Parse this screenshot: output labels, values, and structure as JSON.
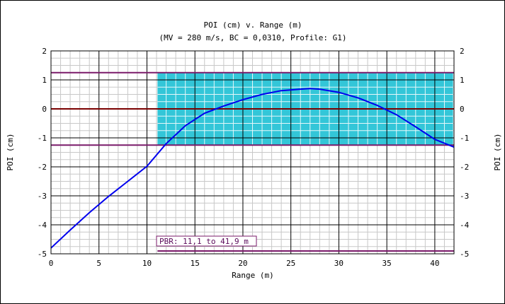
{
  "chart_data": {
    "type": "line",
    "title": "POI (cm) v. Range (m)",
    "subtitle": "(MV = 280 m/s, BC = 0,0310, Profile: G1)",
    "xlabel": "Range (m)",
    "ylabel_left": "POI (cm)",
    "ylabel_right": "POI (cm)",
    "xlim": [
      0,
      42
    ],
    "ylim": [
      -5,
      2
    ],
    "x_ticks": [
      0,
      5,
      10,
      15,
      20,
      25,
      30,
      35,
      40
    ],
    "x_tick_labels": [
      "0",
      "5",
      "10",
      "15",
      "20",
      "25",
      "30",
      "35",
      "40"
    ],
    "y_ticks": [
      2,
      1,
      0,
      -1,
      -2,
      -3,
      -4,
      -5
    ],
    "y_tick_labels": [
      "2",
      "1",
      "0",
      "-1",
      "-2",
      "-3",
      "-4",
      "-5"
    ],
    "grid": true,
    "series": [
      {
        "x": [
          0,
          2,
          4,
          6,
          8,
          10,
          12,
          14,
          16,
          18,
          20,
          22,
          24,
          26,
          27,
          28,
          30,
          32,
          34,
          36,
          38,
          40,
          42
        ],
        "y": [
          -4.8,
          -4.18,
          -3.58,
          -3.02,
          -2.5,
          -1.98,
          -1.2,
          -0.58,
          -0.15,
          0.1,
          0.32,
          0.5,
          0.63,
          0.68,
          0.7,
          0.68,
          0.57,
          0.38,
          0.12,
          -0.2,
          -0.62,
          -1.05,
          -1.32
        ]
      }
    ],
    "pbr_zone": {
      "x_start": 11.1,
      "x_end": 41.9,
      "y_low": -1.25,
      "y_high": 1.25
    },
    "reference_lines": [
      1.25,
      0,
      -1.25
    ],
    "annotation": "PBR: 11,1 to 41,9 m",
    "colors": {
      "curve": "#0000ee",
      "zone_fill": "#33c6d8",
      "reference_line": "#7a1a6a",
      "zero_line": "#7a0000",
      "grid_major": "#000000",
      "grid_minor": "#c8c8c8"
    }
  }
}
